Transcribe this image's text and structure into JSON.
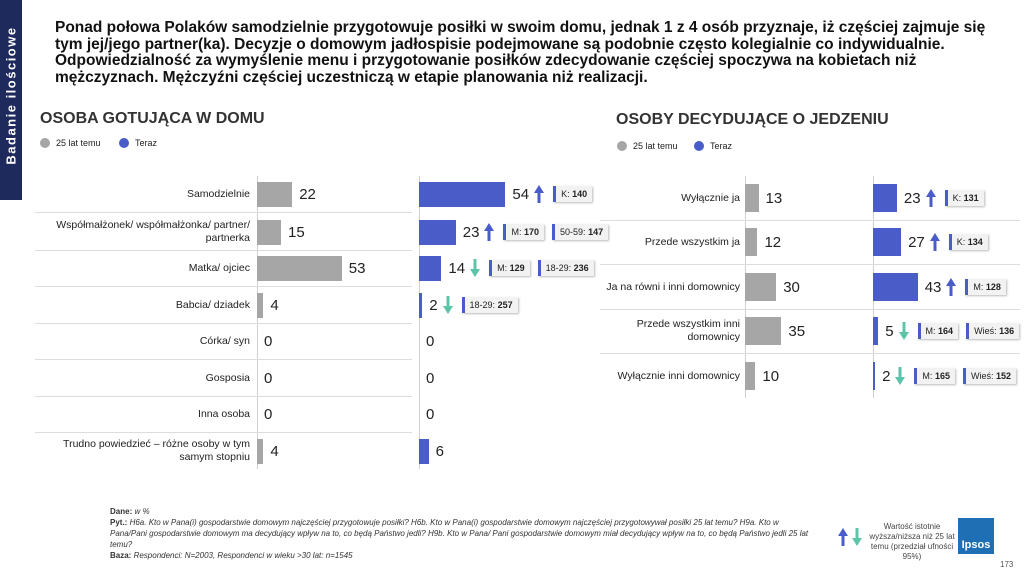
{
  "header": {
    "title": "Ponad połowa Polaków samodzielnie przygotowuje posiłki w swoim domu, jednak 1 z 4 osób przyznaje, iż częściej zajmuje się tym jej/jego partner(ka). Decyzje o domowym jadłospisie podejmowane są podobnie często kolegialnie co indywidualnie. Odpowiedzialność za wymyślenie menu i przygotowanie posiłków zdecydowanie częściej spoczywa na kobietach niż mężczyznach. Mężczyźni częściej uczestniczą w etapie planowania niż realizacji."
  },
  "sidebar": "Badanie ilościowe",
  "chart_data": [
    {
      "type": "bar",
      "title": "OSOBA GOTUJĄCA W DOMU",
      "categories": [
        "Samodzielnie",
        "Współmałżonek/ współmałżonka/ partner/ partnerka",
        "Matka/ ojciec",
        "Babcia/ dziadek",
        "Córka/ syn",
        "Gosposia",
        "Inna osoba",
        "Trudno powiedzieć – różne osoby w tym samym stopniu"
      ],
      "series": [
        {
          "name": "25 lat temu",
          "color": "#a6a6a6",
          "values": [
            22,
            15,
            53,
            4,
            0,
            0,
            0,
            4
          ]
        },
        {
          "name": "Teraz",
          "color": "#4a5cc8",
          "values": [
            54,
            23,
            14,
            2,
            0,
            0,
            0,
            6
          ]
        }
      ],
      "xlim": [
        0,
        100
      ],
      "trend": [
        "up",
        "up",
        "down",
        "down",
        null,
        null,
        null,
        null
      ],
      "badges": [
        [
          {
            "group": "K:",
            "n": 140
          }
        ],
        [
          {
            "group": "M:",
            "n": 170
          },
          {
            "group": "50-59:",
            "n": 147
          }
        ],
        [
          {
            "group": "M:",
            "n": 129
          },
          {
            "group": "18-29:",
            "n": 236
          }
        ],
        [
          {
            "group": "18-29:",
            "n": 257
          }
        ],
        [],
        [],
        [],
        []
      ]
    },
    {
      "type": "bar",
      "title": "OSOBY DECYDUJĄCE O JEDZENIU",
      "categories": [
        "Wyłącznie ja",
        "Przede wszystkim ja",
        "Ja na równi i inni domownicy",
        "Przede wszystkim inni domownicy",
        "Wyłącznie inni domownicy"
      ],
      "series": [
        {
          "name": "25 lat temu",
          "color": "#a6a6a6",
          "values": [
            13,
            12,
            30,
            35,
            10
          ]
        },
        {
          "name": "Teraz",
          "color": "#4a5cc8",
          "values": [
            23,
            27,
            43,
            5,
            2
          ]
        }
      ],
      "xlim": [
        0,
        100
      ],
      "trend": [
        "up",
        "up",
        "up",
        "down",
        "down"
      ],
      "badges": [
        [
          {
            "group": "K:",
            "n": 131
          }
        ],
        [
          {
            "group": "K:",
            "n": 134
          }
        ],
        [
          {
            "group": "M:",
            "n": 128
          }
        ],
        [
          {
            "group": "M:",
            "n": 164
          },
          {
            "group": "Wieś:",
            "n": 136
          }
        ],
        [
          {
            "group": "M:",
            "n": 165
          },
          {
            "group": "Wieś:",
            "n": 152
          }
        ]
      ]
    }
  ],
  "footer": {
    "data_label": "Dane:",
    "data": "w %",
    "question_label": "Pyt.:",
    "question": "H6a. Kto w Pana(i) gospodarstwie domowym najczęściej przygotowuje posiłki? H6b. Kto w Pana(i) gospodarstwie domowym najczęściej przygotowywał posiłki 25 lat temu? H9a. Kto w Pana/Pani gospodarstwie domowym ma decydujący wpływ na to, co będą Państwo jedli? H9b. Kto w Pana/ Pani gospodarstwie domowym miał decydujący wpływ na to, co będą Państwo jedli 25 lat temu?",
    "base_label": "Baza:",
    "base": "Respondenci: N=2003, Respondenci w wieku >30 lat: n=1545",
    "note": "Wartość istotnie wyższa/niższa niż 25 lat temu (przedział ufności 95%)",
    "logo": "Ipsos",
    "page": "173"
  }
}
